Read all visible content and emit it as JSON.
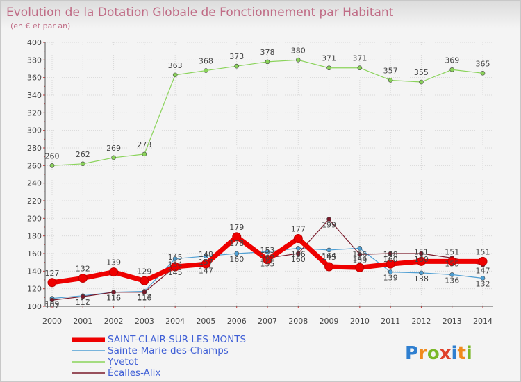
{
  "chart_data": {
    "type": "line",
    "title": "Evolution de la Dotation Globale de Fonctionnement par Habitant",
    "subtitle": "(en € et par an)",
    "xlabel": "",
    "ylabel": "",
    "ylim": [
      100,
      400
    ],
    "ytick_step": 20,
    "grid": true,
    "legend_position": "bottom-left",
    "categories": [
      "2000",
      "2001",
      "2002",
      "2003",
      "2004",
      "2005",
      "2006",
      "2007",
      "2008",
      "2009",
      "2010",
      "2011",
      "2012",
      "2013",
      "2014"
    ],
    "series": [
      {
        "name": "SAINT-CLAIR-SUR-LES-MONTS",
        "color": "#ee0000",
        "values": [
          127,
          132,
          139,
          129,
          145,
          148,
          179,
          153,
          177,
          145,
          144,
          148,
          151,
          151,
          151
        ]
      },
      {
        "name": "Sainte-Marie-des-Champs",
        "color": "#4f9fd3",
        "values": [
          109,
          112,
          116,
          117,
          154,
          157,
          160,
          162,
          166,
          164,
          166,
          139,
          138,
          136,
          132
        ]
      },
      {
        "name": "Yvetot",
        "color": "#8ad35a",
        "values": [
          260,
          262,
          269,
          273,
          363,
          368,
          373,
          378,
          380,
          371,
          371,
          357,
          355,
          369,
          365
        ]
      },
      {
        "name": "Écalles-Alix",
        "color": "#7a1a2a",
        "values": [
          107,
          111,
          116,
          116,
          145,
          147,
          178,
          155,
          160,
          199,
          159,
          160,
          160,
          155,
          147
        ]
      }
    ],
    "data_labels": [
      [
        127,
        132,
        139,
        129,
        145,
        148,
        179,
        153,
        177,
        145,
        144,
        148,
        151,
        151,
        151
      ],
      [
        109,
        112,
        116,
        117,
        154,
        157,
        160,
        162,
        166,
        164,
        166,
        139,
        138,
        136,
        132
      ],
      [
        260,
        262,
        269,
        273,
        363,
        368,
        373,
        378,
        380,
        371,
        371,
        357,
        355,
        369,
        365
      ],
      [
        107,
        111,
        116,
        116,
        145,
        147,
        178,
        155,
        160,
        199,
        159,
        160,
        160,
        155,
        147
      ]
    ]
  },
  "branding": {
    "logo_letters": [
      "P",
      "r",
      "o",
      "x",
      "i",
      "t",
      "i"
    ],
    "logo_colors": [
      "#2f7fd0",
      "#f08a1c",
      "#7ab828",
      "#e0402a",
      "#2f7fd0",
      "#f08a1c",
      "#7ab828"
    ]
  }
}
